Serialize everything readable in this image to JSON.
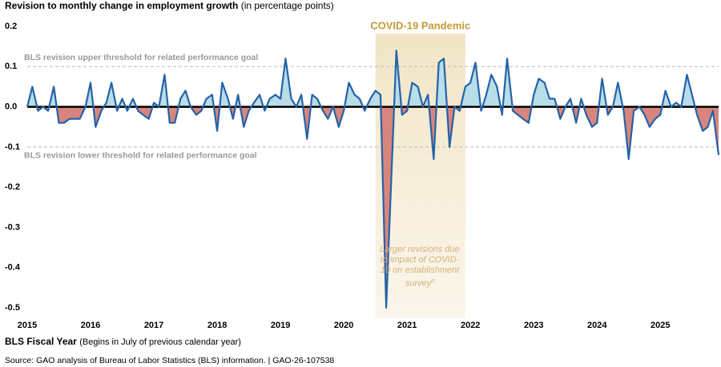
{
  "chart_data": {
    "type": "line",
    "title": "Revision to monthly change in employment growth",
    "subtitle": "(in percentage points)",
    "x_label": "BLS Fiscal Year",
    "x_label_note": "(Begins in July of previous calendar year)",
    "source": "Source: GAO analysis of Bureau of Labor Statistics (BLS) information.  |  GAO-26-107538",
    "shade": {
      "label": "COVID-19 Pandemic",
      "xrange": [
        2020.5,
        2021.92
      ],
      "annotation": "Larger revisions due to impact of COVID-19 on establishment survey",
      "footnote": "a"
    },
    "thresholds": [
      {
        "value": 0.1,
        "label": "BLS revision upper threshold for related performance goal"
      },
      {
        "value": -0.1,
        "label": "BLS revision lower threshold for related performance goal"
      }
    ],
    "x": [
      2015,
      2015.08,
      2015.17,
      2015.25,
      2015.33,
      2015.42,
      2015.5,
      2015.58,
      2015.67,
      2015.75,
      2015.83,
      2015.92,
      2016,
      2016.08,
      2016.17,
      2016.25,
      2016.33,
      2016.42,
      2016.5,
      2016.58,
      2016.67,
      2016.75,
      2016.83,
      2016.92,
      2017,
      2017.08,
      2017.17,
      2017.25,
      2017.33,
      2017.42,
      2017.5,
      2017.58,
      2017.67,
      2017.75,
      2017.83,
      2017.92,
      2018,
      2018.08,
      2018.17,
      2018.25,
      2018.33,
      2018.42,
      2018.5,
      2018.58,
      2018.67,
      2018.75,
      2018.83,
      2018.92,
      2019,
      2019.08,
      2019.17,
      2019.25,
      2019.33,
      2019.42,
      2019.5,
      2019.58,
      2019.67,
      2019.75,
      2019.83,
      2019.92,
      2020,
      2020.08,
      2020.17,
      2020.25,
      2020.33,
      2020.42,
      2020.5,
      2020.58,
      2020.67,
      2020.75,
      2020.83,
      2020.92,
      2021,
      2021.08,
      2021.17,
      2021.25,
      2021.33,
      2021.42,
      2021.5,
      2021.58,
      2021.67,
      2021.75,
      2021.83,
      2021.92,
      2022,
      2022.08,
      2022.17,
      2022.25,
      2022.33,
      2022.42,
      2022.5,
      2022.58,
      2022.67,
      2022.75,
      2022.83,
      2022.92,
      2023,
      2023.08,
      2023.17,
      2023.25,
      2023.33,
      2023.42,
      2023.5,
      2023.58,
      2023.67,
      2023.75,
      2023.83,
      2023.92,
      2024,
      2024.08,
      2024.17,
      2024.25,
      2024.33,
      2024.42,
      2024.5,
      2024.58,
      2024.67,
      2024.75,
      2024.83,
      2024.92,
      2025,
      2025.08,
      2025.17,
      2025.25,
      2025.33,
      2025.42,
      2025.5,
      2025.58,
      2025.67,
      2025.75,
      2025.83,
      2025.92
    ],
    "series": [
      {
        "color": "#2563a8",
        "pos_fill": "#b9dde9",
        "neg_fill": "#d8857d",
        "values": [
          0,
          0.05,
          -0.01,
          0,
          -0.01,
          0.05,
          -0.04,
          -0.04,
          -0.03,
          -0.03,
          -0.03,
          0,
          0.06,
          -0.05,
          -0.01,
          0.01,
          0.06,
          -0.01,
          0.02,
          -0.01,
          0.02,
          -0.01,
          -0.02,
          -0.03,
          0.01,
          0,
          0.08,
          -0.04,
          -0.04,
          0.02,
          0.04,
          0,
          -0.02,
          -0.01,
          0.02,
          0.03,
          -0.06,
          0.06,
          0.02,
          -0.03,
          0.03,
          -0.05,
          -0.01,
          0.01,
          0.03,
          -0.01,
          0.02,
          0.03,
          0.02,
          0.12,
          0.02,
          0,
          0.03,
          -0.08,
          0.03,
          0.02,
          -0.01,
          -0.03,
          0,
          -0.05,
          -0.01,
          0.06,
          0.03,
          0.02,
          -0.01,
          0.02,
          0.04,
          0.03,
          -0.5,
          -0.18,
          0.14,
          -0.02,
          -0.01,
          0.06,
          0.05,
          0,
          0.03,
          -0.13,
          0.11,
          0.12,
          -0.1,
          0,
          -0.01,
          0.05,
          0.06,
          0.11,
          -0.01,
          0.03,
          0.08,
          0.05,
          -0.02,
          0.12,
          -0.01,
          -0.02,
          -0.03,
          -0.04,
          0.03,
          0.07,
          0.06,
          0.02,
          0.02,
          -0.03,
          0,
          0.02,
          -0.04,
          0.02,
          -0.02,
          -0.05,
          -0.04,
          0.07,
          -0.02,
          0,
          0.06,
          -0.01,
          -0.13,
          -0.01,
          0,
          -0.02,
          -0.05,
          -0.03,
          -0.02,
          0.04,
          0,
          0.01,
          0,
          0.08,
          0.03,
          -0.02,
          -0.06,
          -0.05,
          -0.01,
          -0.12
        ]
      }
    ],
    "xlim": [
      2015,
      2025.92
    ],
    "xticks": [
      2015,
      2016,
      2017,
      2018,
      2019,
      2020,
      2021,
      2022,
      2023,
      2024,
      2025
    ],
    "ylim": [
      -0.5,
      0.2
    ],
    "yticks": [
      0.2,
      0.1,
      {
        "value": 0,
        "label": "0.0"
      },
      -0.1,
      -0.2,
      -0.3,
      -0.4,
      -0.5
    ]
  }
}
